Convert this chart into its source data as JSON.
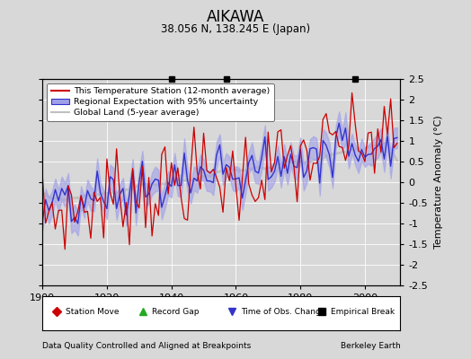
{
  "title": "AIKAWA",
  "subtitle": "38.056 N, 138.245 E (Japan)",
  "ylabel": "Temperature Anomaly (°C)",
  "xlabel_note": "Data Quality Controlled and Aligned at Breakpoints",
  "credit": "Berkeley Earth",
  "ylim": [
    -2.5,
    2.5
  ],
  "xlim": [
    1900,
    2011
  ],
  "yticks": [
    -2.5,
    -2,
    -1.5,
    -1,
    -0.5,
    0,
    0.5,
    1,
    1.5,
    2,
    2.5
  ],
  "xticks": [
    1900,
    1920,
    1940,
    1960,
    1980,
    2000
  ],
  "bg_color": "#d8d8d8",
  "plot_bg_color": "#d8d8d8",
  "empirical_breaks": [
    1940,
    1957,
    1997
  ],
  "time_obs_changes": [],
  "station_moves": [],
  "record_gaps": []
}
